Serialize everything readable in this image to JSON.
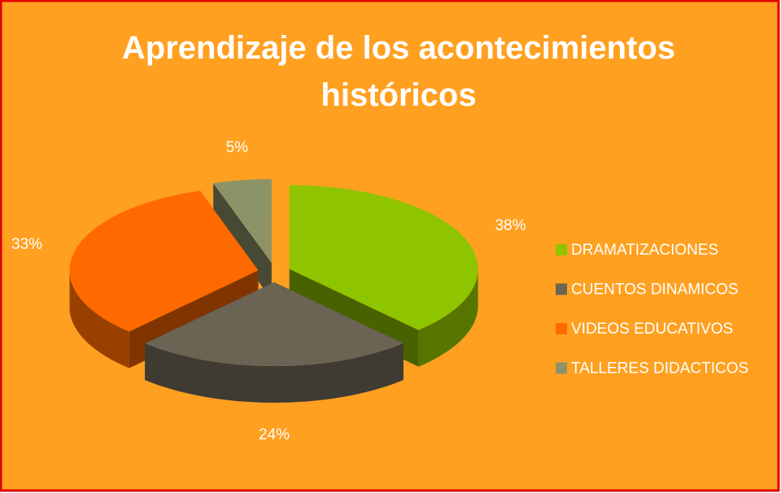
{
  "chart_data": {
    "type": "pie3d",
    "title": "Aprendizaje de los acontecimientos históricos",
    "categories": [
      "DRAMATIZACIONES",
      "CUENTOS DINAMICOS",
      "VIDEOS EDUCATIVOS",
      "TALLERES DIDACTICOS"
    ],
    "values": [
      38,
      24,
      33,
      5
    ],
    "value_labels": [
      "38%",
      "24%",
      "33%",
      "5%"
    ],
    "colors": [
      "#8fc400",
      "#6b6354",
      "#ff6a00",
      "#8c9467"
    ],
    "legend": "right"
  }
}
